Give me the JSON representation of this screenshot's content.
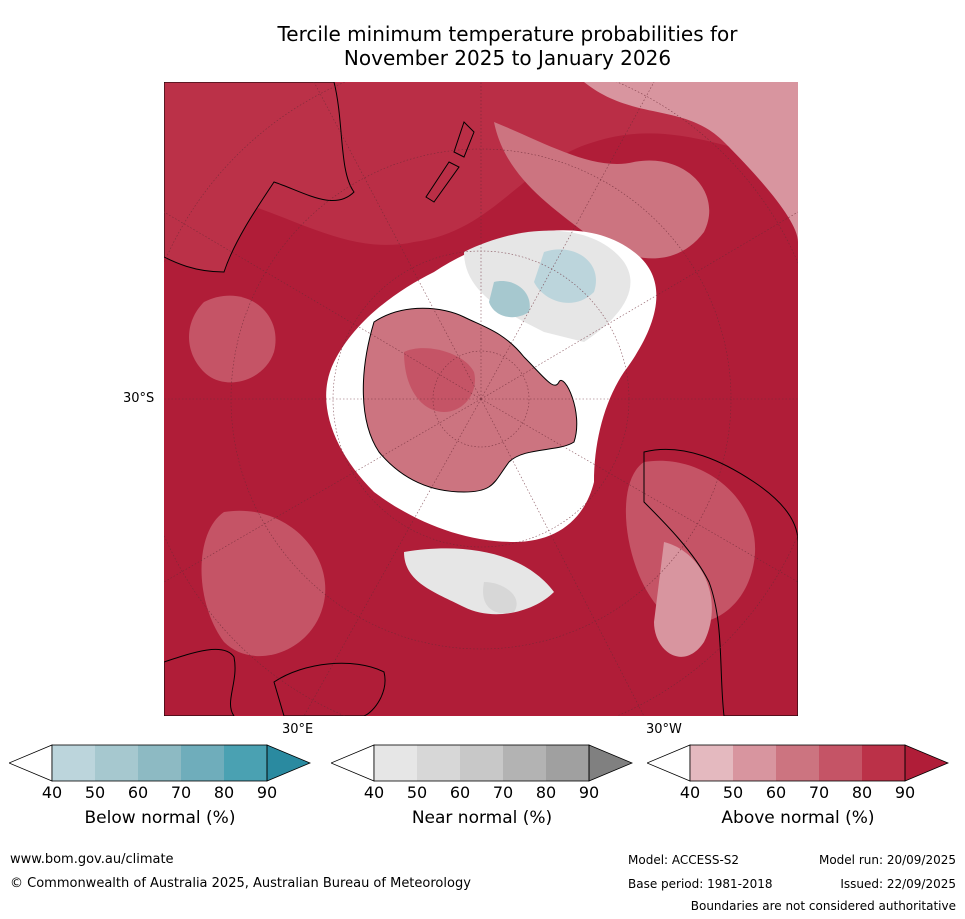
{
  "title_line1": "Tercile minimum temperature probabilities for",
  "title_line2": "November 2025 to January 2026",
  "map": {
    "lat_label": "30°S",
    "lon_label_east": "30°E",
    "lon_label_west": "30°W"
  },
  "colorbars": [
    {
      "name": "below",
      "title": "Below normal (%)",
      "ticks": [
        "40",
        "50",
        "60",
        "70",
        "80",
        "90"
      ],
      "colors": [
        "#ffffff",
        "#bcd5dc",
        "#a6c8cf",
        "#8dbac3",
        "#6fadbb",
        "#4aa1b2",
        "#2a8aa0"
      ]
    },
    {
      "name": "near",
      "title": "Near normal (%)",
      "ticks": [
        "40",
        "50",
        "60",
        "70",
        "80",
        "90"
      ],
      "colors": [
        "#ffffff",
        "#e6e6e6",
        "#d7d7d7",
        "#c8c8c8",
        "#b3b3b3",
        "#a0a0a0",
        "#808080"
      ]
    },
    {
      "name": "above",
      "title": "Above normal (%)",
      "ticks": [
        "40",
        "50",
        "60",
        "70",
        "80",
        "90"
      ],
      "colors": [
        "#ffffff",
        "#e4b9bf",
        "#d8959f",
        "#cc7480",
        "#c55466",
        "#bb3148",
        "#b01d38"
      ]
    }
  ],
  "footer": {
    "website": "www.bom.gov.au/climate",
    "copyright": "© Commonwealth of Australia 2025, Australian Bureau of Meteorology",
    "model": "Model: ACCESS-S2",
    "base_period": "Base period: 1981-2018",
    "model_run": "Model run: 20/09/2025",
    "issued": "Issued: 22/09/2025",
    "disclaimer": "Boundaries are not considered authoritative"
  }
}
